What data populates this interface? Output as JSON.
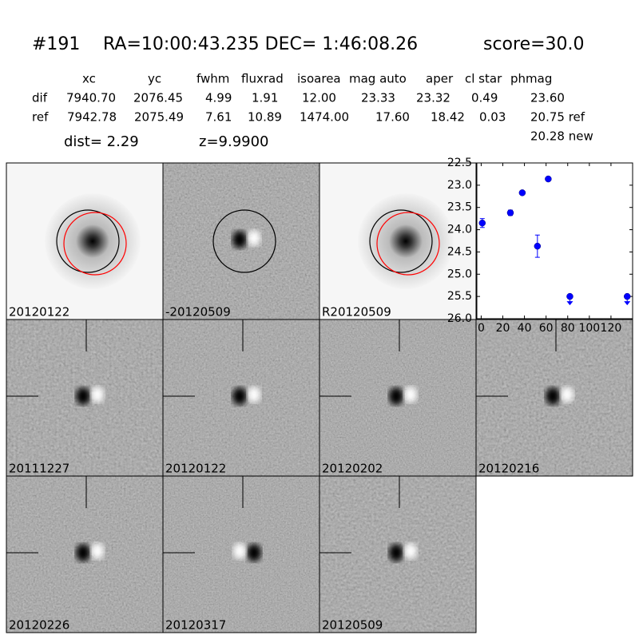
{
  "header": {
    "id": "#191",
    "coords": "RA=10:00:43.235 DEC= 1:46:08.26",
    "score": "score=30.0"
  },
  "table": {
    "columns": [
      "xc",
      "yc",
      "fwhm",
      "fluxrad",
      "isoarea",
      "mag auto",
      "aper",
      "cl star",
      "phmag"
    ],
    "rows": [
      {
        "label": "dif",
        "cells": [
          "7940.70",
          "2076.45",
          "4.99",
          "1.91",
          "12.00",
          "23.33",
          "23.32",
          "0.49",
          "23.60"
        ]
      },
      {
        "label": "ref",
        "cells": [
          "7942.78",
          "2075.49",
          "7.61",
          "10.89",
          "1474.00",
          "17.60",
          "18.42",
          "0.03",
          "20.75 ref"
        ]
      }
    ],
    "extra": "20.28 new"
  },
  "dist": "dist=  2.29",
  "z": "z=9.9900",
  "panels": [
    {
      "label": "20120122",
      "kind": "ref"
    },
    {
      "label": "-20120509",
      "kind": "diff"
    },
    {
      "label": "R20120509",
      "kind": "ref"
    },
    {
      "label": "20111227",
      "kind": "epoch"
    },
    {
      "label": "20120122",
      "kind": "epoch",
      "highlight": true
    },
    {
      "label": "20120202",
      "kind": "epoch"
    },
    {
      "label": "20120216",
      "kind": "epoch"
    },
    {
      "label": "20120226",
      "kind": "epoch"
    },
    {
      "label": "20120317",
      "kind": "epoch"
    },
    {
      "label": "20120509",
      "kind": "epoch"
    }
  ],
  "chart_data": {
    "type": "scatter",
    "color": "#0000ff",
    "x": [
      1,
      27,
      38,
      62,
      52,
      82,
      135
    ],
    "values": [
      23.85,
      23.62,
      23.17,
      22.86,
      24.37,
      25.5,
      25.5
    ],
    "errors": [
      0.1,
      0.06,
      0.03,
      0.03,
      0.25,
      0,
      0
    ],
    "upper_limits": [
      false,
      false,
      false,
      false,
      false,
      true,
      true
    ],
    "xlim": [
      -4,
      140
    ],
    "ylim": [
      22.5,
      26.0
    ],
    "y_inverted": true,
    "xticks": [
      0,
      20,
      40,
      60,
      80,
      100,
      120
    ],
    "yticks": [
      {
        "value": 22.5,
        "label": "22.5"
      },
      {
        "value": 23.0,
        "label": "23.0"
      },
      {
        "value": 23.5,
        "label": "23.5"
      },
      {
        "value": 24.0,
        "label": "24.0"
      },
      {
        "value": 24.5,
        "label": "24.5"
      },
      {
        "value": 25.0,
        "label": "25.0"
      },
      {
        "value": 25.5,
        "label": "25.5"
      },
      {
        "value": 26.0,
        "label": "26.0"
      }
    ]
  }
}
